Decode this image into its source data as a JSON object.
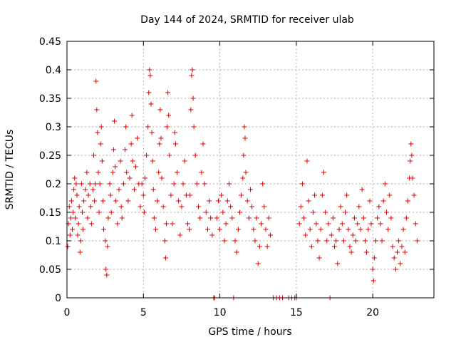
{
  "chart_data": {
    "type": "scatter",
    "title": "Day 144 of 2024, SRMTID for receiver ulab",
    "xlabel": "GPS time / hours",
    "ylabel": "SRMTID / TECUs",
    "xlim": [
      0,
      24
    ],
    "ylim": [
      0,
      0.45
    ],
    "xticks": [
      0,
      5,
      10,
      15,
      20
    ],
    "yticks": [
      0,
      0.05,
      0.1,
      0.15,
      0.2,
      0.25,
      0.3,
      0.35,
      0.4,
      0.45
    ],
    "xtick_labels": [
      "0",
      "5",
      "10",
      "15",
      "20"
    ],
    "ytick_labels": [
      "0",
      "0.05",
      "0.1",
      "0.15",
      "0.2",
      "0.25",
      "0.3",
      "0.35",
      "0.4",
      "0.45"
    ],
    "grid": true,
    "marker": "+",
    "color": "#e00000",
    "series": [
      {
        "name": "SRMTID",
        "points": [
          [
            0.05,
            0.09
          ],
          [
            0.1,
            0.13
          ],
          [
            0.15,
            0.16
          ],
          [
            0.2,
            0.11
          ],
          [
            0.25,
            0.14
          ],
          [
            0.3,
            0.17
          ],
          [
            0.35,
            0.12
          ],
          [
            0.4,
            0.15
          ],
          [
            0.45,
            0.19
          ],
          [
            0.5,
            0.21
          ],
          [
            0.55,
            0.14
          ],
          [
            0.6,
            0.2
          ],
          [
            0.65,
            0.18
          ],
          [
            0.7,
            0.11
          ],
          [
            0.75,
            0.13
          ],
          [
            0.8,
            0.16
          ],
          [
            0.85,
            0.08
          ],
          [
            0.9,
            0.1
          ],
          [
            0.95,
            0.2
          ],
          [
            1.0,
            0.15
          ],
          [
            1.05,
            0.12
          ],
          [
            1.1,
            0.17
          ],
          [
            1.2,
            0.19
          ],
          [
            1.3,
            0.22
          ],
          [
            1.35,
            0.14
          ],
          [
            1.4,
            0.18
          ],
          [
            1.5,
            0.2
          ],
          [
            1.55,
            0.16
          ],
          [
            1.6,
            0.13
          ],
          [
            1.7,
            0.19
          ],
          [
            1.75,
            0.25
          ],
          [
            1.8,
            0.17
          ],
          [
            1.85,
            0.2
          ],
          [
            1.9,
            0.38
          ],
          [
            1.95,
            0.33
          ],
          [
            2.0,
            0.29
          ],
          [
            2.05,
            0.22
          ],
          [
            2.1,
            0.15
          ],
          [
            2.15,
            0.2
          ],
          [
            2.2,
            0.27
          ],
          [
            2.25,
            0.3
          ],
          [
            2.3,
            0.24
          ],
          [
            2.35,
            0.17
          ],
          [
            2.4,
            0.12
          ],
          [
            2.5,
            0.1
          ],
          [
            2.55,
            0.05
          ],
          [
            2.6,
            0.04
          ],
          [
            2.65,
            0.09
          ],
          [
            2.7,
            0.14
          ],
          [
            2.8,
            0.2
          ],
          [
            2.85,
            0.18
          ],
          [
            2.9,
            0.15
          ],
          [
            3.0,
            0.22
          ],
          [
            3.05,
            0.26
          ],
          [
            3.1,
            0.31
          ],
          [
            3.15,
            0.23
          ],
          [
            3.2,
            0.17
          ],
          [
            3.3,
            0.13
          ],
          [
            3.4,
            0.19
          ],
          [
            3.5,
            0.24
          ],
          [
            3.55,
            0.16
          ],
          [
            3.6,
            0.14
          ],
          [
            3.7,
            0.2
          ],
          [
            3.8,
            0.26
          ],
          [
            3.85,
            0.3
          ],
          [
            3.9,
            0.22
          ],
          [
            4.0,
            0.17
          ],
          [
            4.1,
            0.21
          ],
          [
            4.2,
            0.27
          ],
          [
            4.25,
            0.32
          ],
          [
            4.3,
            0.24
          ],
          [
            4.4,
            0.19
          ],
          [
            4.5,
            0.23
          ],
          [
            4.6,
            0.28
          ],
          [
            4.7,
            0.2
          ],
          [
            4.8,
            0.16
          ],
          [
            4.9,
            0.2
          ],
          [
            5.0,
            0.18
          ],
          [
            5.05,
            0.15
          ],
          [
            5.1,
            0.21
          ],
          [
            5.2,
            0.25
          ],
          [
            5.3,
            0.3
          ],
          [
            5.35,
            0.36
          ],
          [
            5.4,
            0.4
          ],
          [
            5.45,
            0.39
          ],
          [
            5.5,
            0.34
          ],
          [
            5.55,
            0.29
          ],
          [
            5.6,
            0.24
          ],
          [
            5.65,
            0.19
          ],
          [
            5.7,
            0.14
          ],
          [
            5.8,
            0.12
          ],
          [
            5.9,
            0.17
          ],
          [
            6.0,
            0.22
          ],
          [
            6.05,
            0.27
          ],
          [
            6.1,
            0.33
          ],
          [
            6.15,
            0.28
          ],
          [
            6.2,
            0.21
          ],
          [
            6.3,
            0.16
          ],
          [
            6.4,
            0.1
          ],
          [
            6.45,
            0.07
          ],
          [
            6.5,
            0.13
          ],
          [
            6.55,
            0.3
          ],
          [
            6.6,
            0.36
          ],
          [
            6.65,
            0.32
          ],
          [
            6.7,
            0.25
          ],
          [
            6.8,
            0.18
          ],
          [
            6.9,
            0.13
          ],
          [
            7.0,
            0.2
          ],
          [
            7.05,
            0.29
          ],
          [
            7.1,
            0.27
          ],
          [
            7.2,
            0.22
          ],
          [
            7.3,
            0.17
          ],
          [
            7.4,
            0.11
          ],
          [
            7.5,
            0.16
          ],
          [
            7.6,
            0.2
          ],
          [
            7.7,
            0.24
          ],
          [
            7.8,
            0.18
          ],
          [
            7.9,
            0.13
          ],
          [
            8.0,
            0.12
          ],
          [
            8.05,
            0.18
          ],
          [
            8.1,
            0.33
          ],
          [
            8.15,
            0.39
          ],
          [
            8.2,
            0.4
          ],
          [
            8.25,
            0.35
          ],
          [
            8.3,
            0.3
          ],
          [
            8.4,
            0.25
          ],
          [
            8.5,
            0.2
          ],
          [
            8.6,
            0.16
          ],
          [
            8.7,
            0.14
          ],
          [
            8.8,
            0.22
          ],
          [
            8.9,
            0.27
          ],
          [
            9.0,
            0.2
          ],
          [
            9.1,
            0.15
          ],
          [
            9.2,
            0.12
          ],
          [
            9.3,
            0.17
          ],
          [
            9.4,
            0.14
          ],
          [
            9.5,
            0.11
          ],
          [
            9.6,
            0.0
          ],
          [
            9.65,
            0.0
          ],
          [
            9.8,
            0.14
          ],
          [
            9.9,
            0.17
          ],
          [
            10.0,
            0.12
          ],
          [
            10.1,
            0.18
          ],
          [
            10.2,
            0.15
          ],
          [
            10.3,
            0.1
          ],
          [
            10.4,
            0.13
          ],
          [
            10.5,
            0.17
          ],
          [
            10.6,
            0.2
          ],
          [
            10.7,
            0.16
          ],
          [
            10.8,
            0.14
          ],
          [
            10.9,
            0.0
          ],
          [
            11.0,
            0.1
          ],
          [
            11.1,
            0.08
          ],
          [
            11.2,
            0.12
          ],
          [
            11.3,
            0.15
          ],
          [
            11.4,
            0.18
          ],
          [
            11.5,
            0.21
          ],
          [
            11.55,
            0.25
          ],
          [
            11.6,
            0.3
          ],
          [
            11.65,
            0.28
          ],
          [
            11.7,
            0.22
          ],
          [
            11.8,
            0.17
          ],
          [
            11.9,
            0.14
          ],
          [
            12.0,
            0.19
          ],
          [
            12.1,
            0.16
          ],
          [
            12.2,
            0.12
          ],
          [
            12.3,
            0.1
          ],
          [
            12.4,
            0.14
          ],
          [
            12.5,
            0.06
          ],
          [
            12.6,
            0.09
          ],
          [
            12.7,
            0.13
          ],
          [
            12.8,
            0.2
          ],
          [
            12.9,
            0.16
          ],
          [
            13.0,
            0.12
          ],
          [
            13.1,
            0.09
          ],
          [
            13.2,
            0.14
          ],
          [
            13.3,
            0.11
          ],
          [
            13.5,
            0.0
          ],
          [
            13.7,
            0.0
          ],
          [
            13.9,
            0.0
          ],
          [
            14.1,
            0.0
          ],
          [
            14.5,
            0.0
          ],
          [
            14.7,
            0.0
          ],
          [
            14.9,
            0.0
          ],
          [
            15.0,
            0.0
          ],
          [
            15.2,
            0.13
          ],
          [
            15.3,
            0.16
          ],
          [
            15.4,
            0.2
          ],
          [
            15.5,
            0.14
          ],
          [
            15.6,
            0.11
          ],
          [
            15.7,
            0.24
          ],
          [
            15.8,
            0.17
          ],
          [
            15.9,
            0.12
          ],
          [
            16.0,
            0.09
          ],
          [
            16.1,
            0.15
          ],
          [
            16.2,
            0.18
          ],
          [
            16.3,
            0.13
          ],
          [
            16.4,
            0.1
          ],
          [
            16.5,
            0.07
          ],
          [
            16.6,
            0.12
          ],
          [
            16.7,
            0.18
          ],
          [
            16.8,
            0.22
          ],
          [
            16.9,
            0.15
          ],
          [
            17.0,
            0.1
          ],
          [
            17.1,
            0.13
          ],
          [
            17.2,
            0.0
          ],
          [
            17.3,
            0.11
          ],
          [
            17.4,
            0.14
          ],
          [
            17.5,
            0.09
          ],
          [
            17.6,
            0.1
          ],
          [
            17.7,
            0.06
          ],
          [
            17.8,
            0.12
          ],
          [
            17.9,
            0.16
          ],
          [
            18.0,
            0.13
          ],
          [
            18.1,
            0.1
          ],
          [
            18.2,
            0.15
          ],
          [
            18.3,
            0.18
          ],
          [
            18.4,
            0.12
          ],
          [
            18.5,
            0.09
          ],
          [
            18.6,
            0.08
          ],
          [
            18.7,
            0.11
          ],
          [
            18.8,
            0.14
          ],
          [
            18.9,
            0.1
          ],
          [
            19.0,
            0.13
          ],
          [
            19.1,
            0.16
          ],
          [
            19.2,
            0.12
          ],
          [
            19.3,
            0.19
          ],
          [
            19.4,
            0.14
          ],
          [
            19.5,
            0.1
          ],
          [
            19.6,
            0.08
          ],
          [
            19.7,
            0.12
          ],
          [
            19.8,
            0.17
          ],
          [
            19.9,
            0.13
          ],
          [
            20.0,
            0.05
          ],
          [
            20.05,
            0.03
          ],
          [
            20.1,
            0.07
          ],
          [
            20.2,
            0.1
          ],
          [
            20.3,
            0.14
          ],
          [
            20.4,
            0.16
          ],
          [
            20.5,
            0.13
          ],
          [
            20.6,
            0.1
          ],
          [
            20.7,
            0.17
          ],
          [
            20.8,
            0.2
          ],
          [
            20.9,
            0.15
          ],
          [
            21.0,
            0.12
          ],
          [
            21.1,
            0.18
          ],
          [
            21.2,
            0.14
          ],
          [
            21.3,
            0.09
          ],
          [
            21.4,
            0.07
          ],
          [
            21.5,
            0.05
          ],
          [
            21.6,
            0.08
          ],
          [
            21.7,
            0.1
          ],
          [
            21.8,
            0.06
          ],
          [
            21.9,
            0.09
          ],
          [
            22.0,
            0.12
          ],
          [
            22.1,
            0.08
          ],
          [
            22.2,
            0.14
          ],
          [
            22.3,
            0.17
          ],
          [
            22.4,
            0.21
          ],
          [
            22.45,
            0.24
          ],
          [
            22.5,
            0.27
          ],
          [
            22.55,
            0.25
          ],
          [
            22.6,
            0.21
          ],
          [
            22.7,
            0.18
          ],
          [
            22.8,
            0.13
          ],
          [
            22.9,
            0.1
          ]
        ]
      }
    ]
  }
}
